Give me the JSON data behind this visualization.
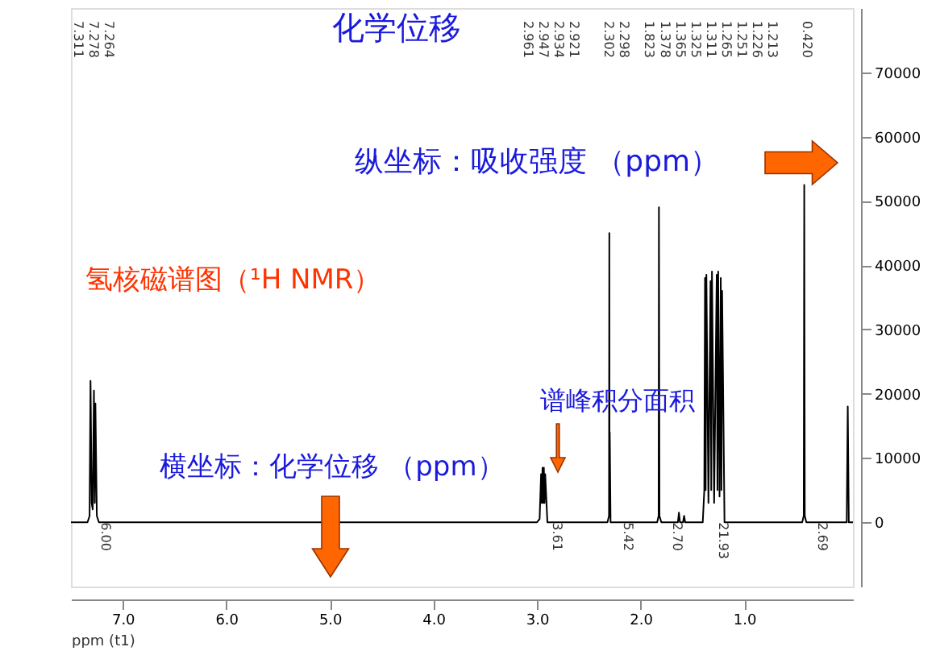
{
  "chart_data": {
    "type": "line",
    "title": "氢核磁谱图（¹H NMR）",
    "xlabel": "ppm (t1)",
    "x": [
      7.5,
      7.34,
      7.32,
      7.311,
      7.3,
      7.29,
      7.278,
      7.27,
      7.264,
      7.25,
      7.23,
      3.0,
      2.975,
      2.961,
      2.954,
      2.947,
      2.94,
      2.934,
      2.927,
      2.921,
      2.9,
      2.32,
      2.305,
      2.302,
      2.3,
      2.298,
      2.29,
      1.84,
      1.826,
      1.823,
      1.818,
      1.8,
      1.64,
      1.63,
      1.62,
      1.59,
      1.58,
      1.57,
      1.4,
      1.385,
      1.378,
      1.372,
      1.365,
      1.345,
      1.325,
      1.318,
      1.311,
      1.29,
      1.265,
      1.258,
      1.251,
      1.238,
      1.226,
      1.22,
      1.213,
      1.19,
      0.44,
      0.425,
      0.42,
      0.415,
      0.4,
      0.01,
      0.0,
      -0.01,
      -0.05
    ],
    "series": [
      {
        "color": "#000000",
        "values": [
          0,
          0,
          1000,
          22000,
          3000,
          2000,
          20500,
          3000,
          18500,
          1000,
          0,
          0,
          500,
          7500,
          3000,
          8500,
          3000,
          8500,
          3000,
          7500,
          0,
          0,
          1000,
          45000,
          5000,
          14000,
          0,
          0,
          1000,
          49000,
          1000,
          0,
          0,
          1500,
          0,
          0,
          1000,
          0,
          0,
          5000,
          38000,
          5000,
          38500,
          3000,
          37500,
          5000,
          39000,
          3000,
          38500,
          5000,
          39000,
          4000,
          38000,
          5000,
          36000,
          0,
          0,
          1000,
          52500,
          1000,
          0,
          0,
          18000,
          0,
          0
        ]
      }
    ],
    "xlim": [
      7.5,
      -0.05
    ],
    "xticks": [
      {
        "value": 7,
        "label": "7.0"
      },
      {
        "value": 6,
        "label": "6.0"
      },
      {
        "value": 5,
        "label": "5.0"
      },
      {
        "value": 4,
        "label": "4.0"
      },
      {
        "value": 3,
        "label": "3.0"
      },
      {
        "value": 2,
        "label": "2.0"
      },
      {
        "value": 1,
        "label": "1.0"
      }
    ],
    "ylim": [
      -10000,
      80000
    ],
    "yticks": [
      0,
      10000,
      20000,
      30000,
      40000,
      50000,
      60000,
      70000
    ],
    "grid": false,
    "legend": false,
    "marker": "none",
    "line_style": "solid",
    "annotations": [
      "化学位移",
      "纵坐标：吸收强度 （ppm）",
      "横坐标：化学位移 （ppm）",
      "谱峰积分面积",
      "7.311",
      "7.278",
      "7.264",
      "2.961",
      "2.947",
      "2.934",
      "2.921",
      "2.302",
      "2.298",
      "1.823",
      "1.378",
      "1.365",
      "1.325",
      "1.311",
      "1.265",
      "1.251",
      "1.226",
      "1.213",
      "0.420",
      {
        "text": "6.00",
        "x": 7.36,
        "y": 0
      },
      {
        "text": "3.61",
        "x": 3.0,
        "y": 0
      },
      {
        "text": "5.42",
        "x": 2.32,
        "y": 0
      },
      {
        "text": "2.70",
        "x": 1.84,
        "y": 0
      },
      {
        "text": "21.93",
        "x": 1.4,
        "y": 0
      },
      {
        "text": "2.69",
        "x": 0.44,
        "y": 0
      }
    ]
  }
}
